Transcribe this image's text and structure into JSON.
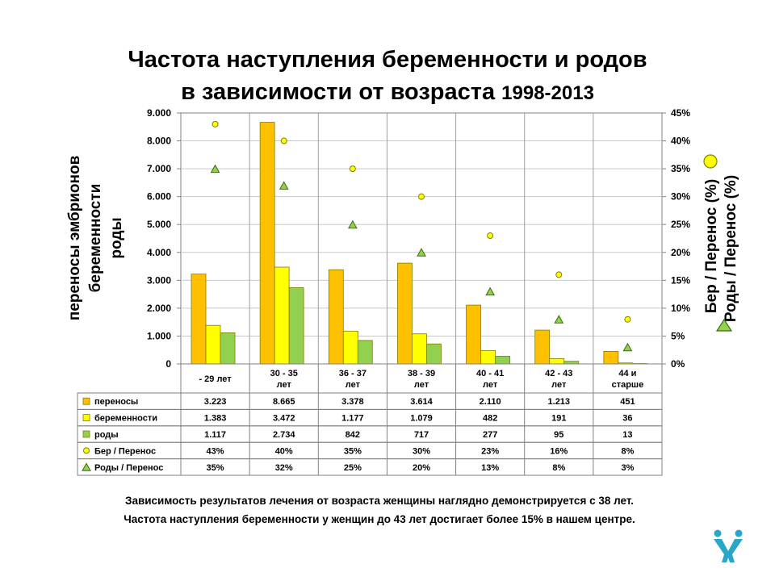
{
  "title": {
    "line1": "Частота наступления беременности и родов",
    "line2": "в зависимости от возраста",
    "years": "1998-2013"
  },
  "chart_data": {
    "type": "bar",
    "categories": [
      "- 29 лет",
      "30 - 35 лет",
      "36 - 37 лет",
      "38 - 39 лет",
      "40 - 41 лет",
      "42 - 43 лет",
      "44 и старше"
    ],
    "category_lines": [
      [
        "- 29 лет"
      ],
      [
        "30 - 35",
        "лет"
      ],
      [
        "36 - 37",
        "лет"
      ],
      [
        "38 - 39",
        "лет"
      ],
      [
        "40 - 41",
        "лет"
      ],
      [
        "42 - 43",
        "лет"
      ],
      [
        "44 и",
        "старше"
      ]
    ],
    "ylabel_left": [
      "переносы эмбрионов",
      "беременности",
      "роды"
    ],
    "ylabel_right": [
      "Бер / Перенос (%)",
      "Роды / Перенос (%)"
    ],
    "ylim_left": [
      0,
      9000
    ],
    "ylim_right": [
      0,
      45
    ],
    "yticks_left": [
      "0",
      "1.000",
      "2.000",
      "3.000",
      "4.000",
      "5.000",
      "6.000",
      "7.000",
      "8.000",
      "9.000"
    ],
    "yticks_right": [
      "0%",
      "5%",
      "10%",
      "15%",
      "20%",
      "25%",
      "30%",
      "35%",
      "40%",
      "45%"
    ],
    "series": [
      {
        "name": "переносы",
        "axis": "left",
        "kind": "bar",
        "color": "#ffc000",
        "values": [
          3223,
          8665,
          3378,
          3614,
          2110,
          1213,
          451
        ],
        "labels": [
          "3.223",
          "8.665",
          "3.378",
          "3.614",
          "2.110",
          "1.213",
          "451"
        ]
      },
      {
        "name": "беременности",
        "axis": "left",
        "kind": "bar",
        "color": "#ffff00",
        "values": [
          1383,
          3472,
          1177,
          1079,
          482,
          191,
          36
        ],
        "labels": [
          "1.383",
          "3.472",
          "1.177",
          "1.079",
          "482",
          "191",
          "36"
        ]
      },
      {
        "name": "роды",
        "axis": "left",
        "kind": "bar",
        "color": "#92d050",
        "values": [
          1117,
          2734,
          842,
          717,
          277,
          95,
          13
        ],
        "labels": [
          "1.117",
          "2.734",
          "842",
          "717",
          "277",
          "95",
          "13"
        ]
      },
      {
        "name": "Бер / Перенос",
        "axis": "right",
        "kind": "circle",
        "color": "#ffff00",
        "values": [
          43,
          40,
          35,
          30,
          23,
          16,
          8
        ],
        "labels": [
          "43%",
          "40%",
          "35%",
          "30%",
          "23%",
          "16%",
          "8%"
        ]
      },
      {
        "name": "Роды / Перенос",
        "axis": "right",
        "kind": "triangle",
        "color": "#92d050",
        "values": [
          35,
          32,
          25,
          20,
          13,
          8,
          3
        ],
        "labels": [
          "35%",
          "32%",
          "25%",
          "20%",
          "13%",
          "8%",
          "3%"
        ]
      }
    ],
    "grid": true,
    "data_table": true
  },
  "notes": {
    "line1": "Зависимость результатов лечения от возраста женщины наглядно демонстрируется с 38 лет.",
    "line2": "Частота наступления беременности у женщин до 43 лет достигает более 15% в нашем центре."
  },
  "logo": {
    "icon": "people-logo-icon",
    "color": "#2aa6c8"
  }
}
